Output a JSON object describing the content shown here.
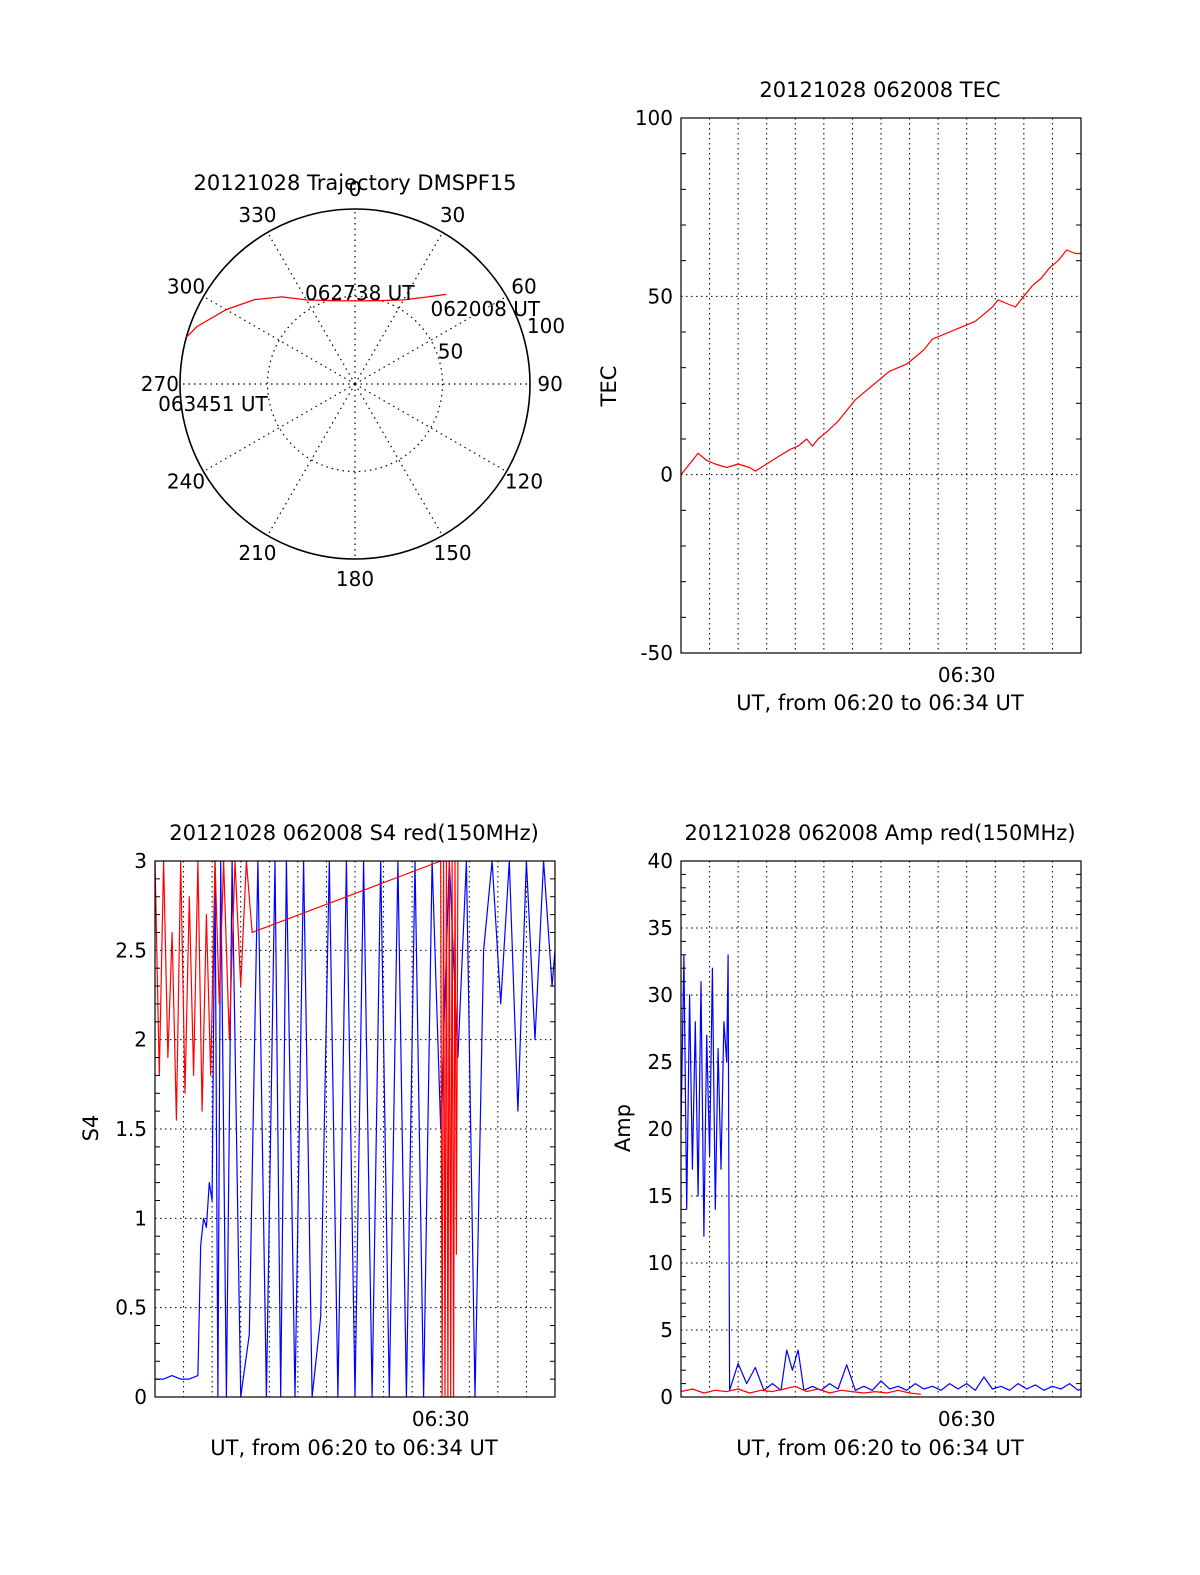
{
  "colors": {
    "red": "#ff0000",
    "blue": "#0000ff",
    "grid": "#000000"
  },
  "chart_data": [
    {
      "id": "trajectory",
      "type": "polar",
      "title": "20121028 Trajectory DMSPF15",
      "angle_labels": [
        "0",
        "30",
        "60",
        "90",
        "120",
        "150",
        "180",
        "210",
        "240",
        "270",
        "300",
        "330"
      ],
      "angles": [
        0,
        30,
        60,
        90,
        120,
        150,
        180,
        210,
        240,
        270,
        300,
        330
      ],
      "radial_labels": [
        "50",
        "100"
      ],
      "radial_values": [
        50,
        100
      ],
      "rmax": 100,
      "series": [
        {
          "color": "red",
          "points": [
            {
              "az": 45.5,
              "r": 73.1
            },
            {
              "az": 40,
              "r": 65
            },
            {
              "az": 30,
              "r": 55.5
            },
            {
              "az": 15,
              "r": 49.3
            },
            {
              "az": 0,
              "r": 47.5
            },
            {
              "az": -15,
              "r": 49.3
            },
            {
              "az": -30,
              "r": 55.5
            },
            {
              "az": -40,
              "r": 65
            },
            {
              "az": -50,
              "r": 75
            },
            {
              "az": -60,
              "r": 85
            },
            {
              "az": -70,
              "r": 96
            },
            {
              "az": -74.5,
              "r": 100
            }
          ]
        }
      ],
      "annotations": [
        {
          "text": "062008 UT",
          "az": 60,
          "r": 86
        },
        {
          "text": "062738 UT",
          "az": 3,
          "r": 52
        },
        {
          "text": "063451 UT",
          "az": 262,
          "r": 82
        }
      ]
    },
    {
      "id": "tec",
      "type": "line",
      "title": "20121028 062008 TEC",
      "xlabel": "UT, from 06:20 to 06:34 UT",
      "ylabel": "TEC",
      "xlim": [
        0,
        14
      ],
      "ylim": [
        -50,
        100
      ],
      "yticks": [
        -50,
        0,
        50,
        100
      ],
      "xtick_labels": [
        {
          "label": "06:30",
          "x": 10
        }
      ],
      "grid": true,
      "series": [
        {
          "color": "red",
          "x": [
            0,
            0.3,
            0.6,
            0.9,
            1.2,
            1.6,
            2.0,
            2.4,
            2.6,
            3.0,
            3.4,
            3.8,
            4.1,
            4.4,
            4.6,
            4.8,
            5.1,
            5.5,
            5.8,
            6.1,
            6.4,
            6.7,
            7.0,
            7.3,
            7.6,
            7.9,
            8.2,
            8.5,
            8.8,
            9.1,
            9.4,
            9.7,
            10.0,
            10.3,
            10.6,
            10.9,
            11.1,
            11.4,
            11.7,
            12.0,
            12.3,
            12.6,
            12.9,
            13.2,
            13.5,
            13.8,
            14.0
          ],
          "y": [
            0,
            3,
            6,
            4,
            3,
            2,
            3,
            2,
            1,
            3,
            5,
            7,
            8,
            10,
            8,
            10,
            12,
            15,
            18,
            21,
            23,
            25,
            27,
            29,
            30,
            31,
            33,
            35,
            38,
            39,
            40,
            41,
            42,
            43,
            45,
            47,
            49,
            48,
            47,
            50,
            53,
            55,
            58,
            60,
            63,
            62,
            62
          ]
        }
      ]
    },
    {
      "id": "s4",
      "type": "line",
      "title": "20121028 062008 S4 red(150MHz)",
      "xlabel": "UT, from 06:20 to 06:34 UT",
      "ylabel": "S4",
      "xlim": [
        0,
        14
      ],
      "ylim": [
        0,
        3
      ],
      "yticks": [
        0,
        0.5,
        1,
        1.5,
        2,
        2.5,
        3
      ],
      "ytick_labels": [
        "0",
        "0.5",
        "1",
        "1.5",
        "2",
        "2.5",
        "3"
      ],
      "xtick_labels": [
        {
          "label": "06:30",
          "x": 10
        }
      ],
      "grid": true,
      "series": [
        {
          "color": "blue",
          "x": [
            0,
            0.3,
            0.6,
            0.9,
            1.2,
            1.5,
            1.6,
            1.7,
            1.8,
            1.9,
            2.0,
            2.1,
            2.2,
            2.3,
            2.5,
            2.7,
            3.0,
            3.3,
            3.6,
            3.9,
            4.2,
            4.4,
            4.6,
            4.9,
            5.2,
            5.5,
            5.8,
            6.1,
            6.4,
            6.7,
            7.0,
            7.3,
            7.6,
            7.9,
            8.2,
            8.5,
            8.8,
            9.1,
            9.4,
            9.7,
            10.0,
            10.3,
            10.6,
            10.9,
            11.2,
            11.5,
            11.8,
            12.1,
            12.4,
            12.7,
            13.0,
            13.3,
            13.6,
            13.9,
            14.0
          ],
          "y": [
            0.1,
            0.1,
            0.12,
            0.1,
            0.1,
            0.12,
            0.85,
            1.0,
            0.95,
            1.2,
            1.1,
            3,
            0,
            3,
            0,
            3,
            0,
            0.35,
            3,
            0,
            3,
            0,
            3,
            0,
            3,
            0,
            0.45,
            3,
            0,
            3,
            0,
            3,
            0,
            3,
            0,
            3,
            0,
            3,
            0,
            3,
            1.5,
            3,
            1.9,
            3,
            0,
            2.5,
            3,
            2.2,
            3,
            1.6,
            3,
            2.0,
            3,
            2.3,
            2.5
          ]
        },
        {
          "color": "red",
          "x": [
            0,
            0.15,
            0.3,
            0.45,
            0.6,
            0.75,
            0.9,
            1.05,
            1.2,
            1.35,
            1.5,
            1.65,
            1.8,
            1.95,
            2.1,
            2.25,
            2.4,
            2.6,
            2.8,
            3.0,
            3.2,
            3.4,
            10.0,
            10.05,
            10.1,
            10.15,
            10.2,
            10.25,
            10.3,
            10.35,
            10.4,
            10.45,
            10.5,
            10.55,
            10.6
          ],
          "y": [
            3,
            1.8,
            3,
            1.9,
            2.6,
            1.55,
            3,
            1.7,
            2.8,
            1.8,
            3,
            1.6,
            2.7,
            1.8,
            3,
            2.2,
            3,
            2.0,
            3,
            2.3,
            3,
            2.6,
            3,
            0,
            3,
            0,
            3,
            0,
            3,
            0,
            3,
            0,
            3,
            0.8,
            3
          ]
        }
      ]
    },
    {
      "id": "amp",
      "type": "line",
      "title": "20121028 062008 Amp red(150MHz)",
      "xlabel": "UT, from 06:20 to 06:34 UT",
      "ylabel": "Amp",
      "xlim": [
        0,
        14
      ],
      "ylim": [
        0,
        40
      ],
      "yticks": [
        0,
        5,
        10,
        15,
        20,
        25,
        30,
        35,
        40
      ],
      "xtick_labels": [
        {
          "label": "06:30",
          "x": 10
        }
      ],
      "grid": true,
      "series": [
        {
          "color": "blue",
          "x": [
            0,
            0.1,
            0.2,
            0.3,
            0.4,
            0.5,
            0.6,
            0.7,
            0.8,
            0.9,
            1.0,
            1.1,
            1.2,
            1.3,
            1.4,
            1.5,
            1.6,
            1.65,
            1.7,
            2.0,
            2.3,
            2.6,
            2.9,
            3.2,
            3.5,
            3.7,
            3.9,
            4.1,
            4.3,
            4.6,
            4.9,
            5.2,
            5.5,
            5.8,
            6.1,
            6.4,
            6.7,
            7.0,
            7.3,
            7.6,
            7.9,
            8.2,
            8.5,
            8.8,
            9.1,
            9.4,
            9.7,
            10.0,
            10.3,
            10.6,
            10.9,
            11.2,
            11.5,
            11.8,
            12.1,
            12.4,
            12.7,
            13.0,
            13.3,
            13.6,
            13.9,
            14.0
          ],
          "y": [
            20,
            33,
            14,
            30,
            17,
            28,
            15,
            31,
            12,
            27,
            18,
            32,
            14,
            26,
            17,
            28,
            25,
            33,
            0.5,
            2.5,
            1.0,
            2.2,
            0.5,
            1.0,
            0.5,
            3.5,
            2.0,
            3.5,
            0.5,
            0.8,
            0.5,
            1.0,
            0.6,
            2.4,
            0.5,
            0.8,
            0.5,
            1.2,
            0.6,
            0.8,
            0.5,
            1.0,
            0.6,
            0.8,
            0.5,
            1.0,
            0.6,
            1.0,
            0.5,
            1.5,
            0.6,
            0.8,
            0.5,
            1.0,
            0.6,
            0.9,
            0.5,
            0.8,
            0.6,
            1.0,
            0.5,
            0.6
          ]
        },
        {
          "color": "red",
          "x": [
            0,
            0.4,
            0.8,
            1.2,
            1.6,
            2.0,
            2.4,
            2.8,
            3.2,
            3.6,
            4.0,
            4.4,
            4.8,
            5.2,
            5.6,
            6.0,
            6.4,
            6.8,
            7.2,
            7.6,
            8.0,
            8.4
          ],
          "y": [
            0.4,
            0.6,
            0.3,
            0.5,
            0.4,
            0.6,
            0.3,
            0.5,
            0.4,
            0.6,
            0.8,
            0.4,
            0.6,
            0.3,
            0.5,
            0.4,
            0.3,
            0.4,
            0.3,
            0.5,
            0.3,
            0.2
          ]
        }
      ]
    }
  ]
}
